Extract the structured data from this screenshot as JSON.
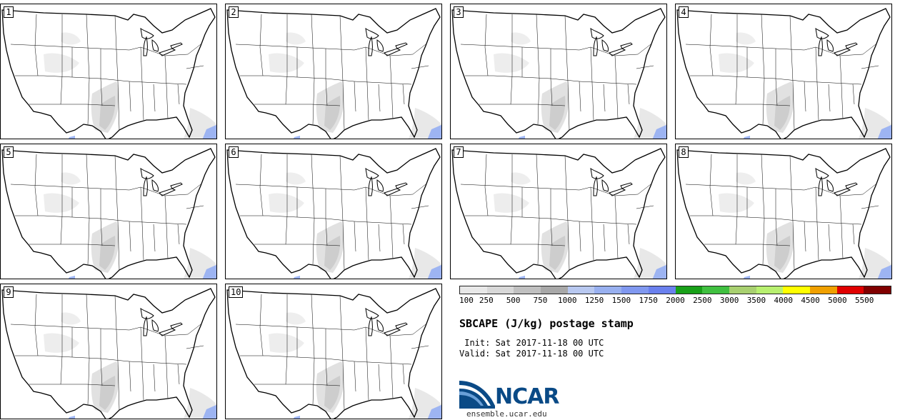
{
  "title": "SBCAPE (J/kg) postage stamp",
  "init_text": " Init: Sat 2017-11-18 00 UTC",
  "valid_text": "Valid: Sat 2017-11-18 00 UTC",
  "logo_text": "NCAR",
  "logo_url": "ensemble.ucar.edu",
  "members": [
    "1",
    "2",
    "3",
    "4",
    "5",
    "6",
    "7",
    "8",
    "9",
    "10"
  ],
  "colorbar": {
    "ticks": [
      "100",
      "250",
      "500",
      "750",
      "1000",
      "1250",
      "1500",
      "1750",
      "2000",
      "2500",
      "3000",
      "3500",
      "4000",
      "4500",
      "5000",
      "5500"
    ],
    "colors": [
      "#e8e8e8",
      "#d8d8d8",
      "#c0c0c0",
      "#a8a8a8",
      "#b8c8f0",
      "#98b0f0",
      "#8098f0",
      "#6a80ee",
      "#18a018",
      "#40c040",
      "#a8d070",
      "#b8f070",
      "#ffff00",
      "#f0a000",
      "#e00000",
      "#800000"
    ]
  },
  "colors": {
    "shade_light": "#dedede",
    "shade_mid": "#c8c8c8",
    "shade_blue": "#9db4f2",
    "logo_blue": "#0a4a86"
  }
}
